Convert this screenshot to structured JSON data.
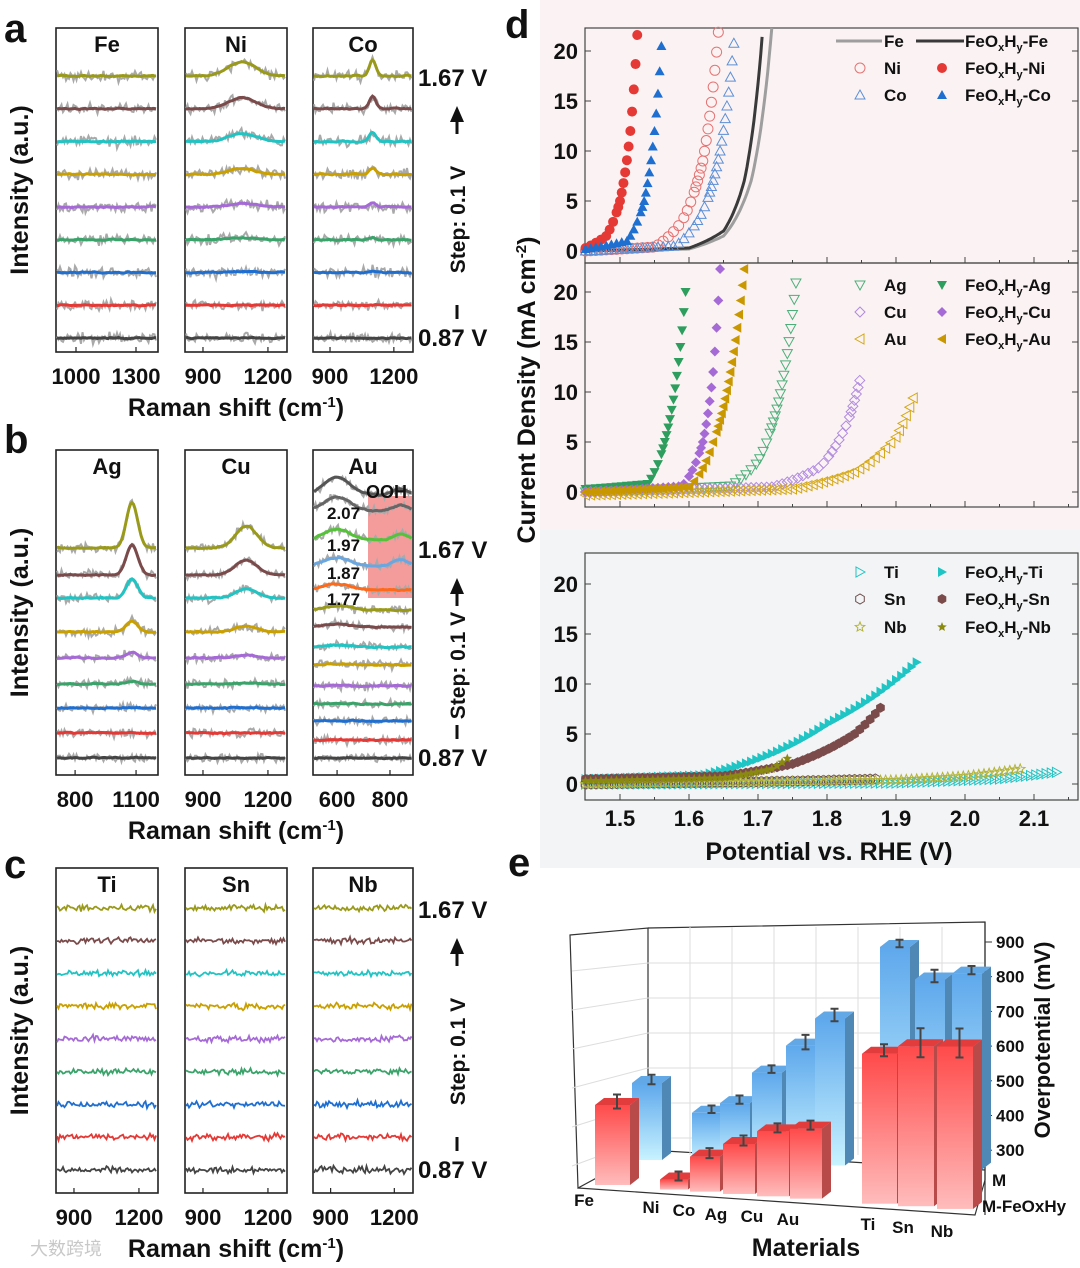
{
  "panel_labels": {
    "a": "a",
    "b": "b",
    "c": "c",
    "d": "d",
    "e": "e"
  },
  "watermark": "大数跨境",
  "chart_data": [
    {
      "id": "a",
      "type": "line",
      "xlabel": {
        "main": "Raman shift (cm",
        "sup": "-1",
        "end": ")"
      },
      "ylabel": "Intensity (a.u.)",
      "voltage_top": "1.67 V",
      "voltage_bottom": "0.87 V",
      "step": "Step: 0.1 V",
      "columns": [
        {
          "label": "Fe",
          "range": [
            900,
            1410
          ],
          "ticks": [
            "1000",
            "1300"
          ],
          "peak": null
        },
        {
          "label": "Ni",
          "range": [
            817,
            1288
          ],
          "ticks": [
            "900",
            "1200"
          ],
          "peak": {
            "center": 1080,
            "width": 90,
            "amp": 14
          }
        },
        {
          "label": "Co",
          "range": [
            820,
            1290
          ],
          "ticks": [
            "900",
            "1200"
          ],
          "peak": {
            "center": 1100,
            "width": 22,
            "amp": 16
          }
        }
      ]
    },
    {
      "id": "b",
      "type": "line",
      "xlabel": {
        "main": "Raman shift (cm",
        "sup": "-1",
        "end": ")"
      },
      "ylabel": "Intensity (a.u.)",
      "voltage_top": "1.67 V",
      "voltage_bottom": "0.87 V",
      "step": "Step: 0.1 V",
      "columns": [
        {
          "label": "Ag",
          "range": [
            706,
            1208
          ],
          "ticks": [
            "800",
            "1100"
          ],
          "peak": {
            "center": 1080,
            "width": 40,
            "amp": 45
          }
        },
        {
          "label": "Cu",
          "range": [
            817,
            1288
          ],
          "ticks": [
            "900",
            "1200"
          ],
          "peak": {
            "center": 1100,
            "width": 70,
            "amp": 22
          }
        },
        {
          "label": "Au",
          "range": [
            509,
            887
          ],
          "ticks": [
            "600",
            "800"
          ],
          "peak": {
            "center": 600,
            "width": 70,
            "amp": 18
          }
        }
      ],
      "au_annotations": {
        "ooh": "OOH",
        "potentials": [
          "2.07",
          "1.97",
          "1.87",
          "1.77"
        ]
      }
    },
    {
      "id": "c",
      "type": "line",
      "xlabel": {
        "main": "Raman shift (cm",
        "sup": "-1",
        "end": ")"
      },
      "ylabel": "Intensity (a.u.)",
      "voltage_top": "1.67 V",
      "voltage_bottom": "0.87 V",
      "step": "Step: 0.1 V",
      "columns": [
        {
          "label": "Ti",
          "range": [
            817,
            1288
          ],
          "ticks": [
            "900",
            "1200"
          ],
          "peak": null
        },
        {
          "label": "Sn",
          "range": [
            817,
            1288
          ],
          "ticks": [
            "900",
            "1200"
          ],
          "peak": null
        },
        {
          "label": "Nb",
          "range": [
            817,
            1288
          ],
          "ticks": [
            "900",
            "1200"
          ],
          "peak": null
        }
      ]
    },
    {
      "id": "d",
      "type": "scatter",
      "xlabel": "Potential vs. RHE (V)",
      "ylabel": {
        "main": "Current Density (mA cm",
        "sup": "-2",
        "end": ")"
      },
      "xlim": [
        1.45,
        2.16
      ],
      "ylim": [
        -1.2,
        22.3
      ],
      "xticks": [
        "1.5",
        "1.6",
        "1.7",
        "1.8",
        "1.9",
        "2.0",
        "2.1"
      ],
      "yticks": [
        "0",
        "5",
        "10",
        "15",
        "20"
      ],
      "legend": "top-right",
      "subplots": [
        {
          "series": [
            {
              "name": "Fe",
              "marker": "line",
              "color": "#9e9e9e",
              "points": [
                [
                  1.45,
                  0
                ],
                [
                  1.6,
                  0.2
                ],
                [
                  1.65,
                  1.5
                ],
                [
                  1.69,
                  7
                ],
                [
                  1.72,
                  22.3
                ]
              ]
            },
            {
              "name": "FeOxHy-Fe",
              "marker": "line",
              "color": "#3a3a3a",
              "points": [
                [
                  1.45,
                  0
                ],
                [
                  1.6,
                  0.3
                ],
                [
                  1.65,
                  2
                ],
                [
                  1.68,
                  7
                ],
                [
                  1.707,
                  22.3
                ]
              ]
            },
            {
              "name": "Ni",
              "marker": "circle-open",
              "color": "#e57373",
              "points": [
                [
                  1.45,
                  0
                ],
                [
                  1.55,
                  0.4
                ],
                [
                  1.59,
                  3
                ],
                [
                  1.62,
                  9
                ],
                [
                  1.643,
                  22.3
                ]
              ]
            },
            {
              "name": "FeOxHy-Ni",
              "marker": "circle",
              "color": "#e53935",
              "points": [
                [
                  1.45,
                  0.3
                ],
                [
                  1.48,
                  1.5
                ],
                [
                  1.5,
                  5
                ],
                [
                  1.515,
                  12
                ],
                [
                  1.525,
                  21.6
                ]
              ]
            },
            {
              "name": "Co",
              "marker": "triangle-open",
              "color": "#5c8fd6",
              "points": [
                [
                  1.45,
                  0
                ],
                [
                  1.58,
                  0.5
                ],
                [
                  1.62,
                  4
                ],
                [
                  1.645,
                  10
                ],
                [
                  1.667,
                  22.3
                ]
              ]
            },
            {
              "name": "FeOxHy-Co",
              "marker": "triangle",
              "color": "#1f6fd1",
              "points": [
                [
                  1.45,
                  0.2
                ],
                [
                  1.51,
                  1
                ],
                [
                  1.535,
                  5
                ],
                [
                  1.55,
                  12
                ],
                [
                  1.56,
                  20.5
                ]
              ]
            }
          ]
        },
        {
          "series": [
            {
              "name": "Ag",
              "marker": "triangle-down-open",
              "color": "#4caf7a",
              "points": [
                [
                  1.45,
                  0
                ],
                [
                  1.66,
                  0.6
                ],
                [
                  1.7,
                  3
                ],
                [
                  1.73,
                  9
                ],
                [
                  1.757,
                  22.3
                ]
              ]
            },
            {
              "name": "FeOxHy-Ag",
              "marker": "triangle-down",
              "color": "#2e9e5e",
              "points": [
                [
                  1.45,
                  0.3
                ],
                [
                  1.54,
                  0.8
                ],
                [
                  1.565,
                  5
                ],
                [
                  1.585,
                  13
                ],
                [
                  1.595,
                  20
                ]
              ]
            },
            {
              "name": "Cu",
              "marker": "diamond-open",
              "color": "#b08ae0",
              "points": [
                [
                  1.45,
                  0
                ],
                [
                  1.72,
                  0.5
                ],
                [
                  1.79,
                  2.5
                ],
                [
                  1.83,
                  7
                ],
                [
                  1.848,
                  11.3
                ]
              ]
            },
            {
              "name": "FeOxHy-Cu",
              "marker": "diamond",
              "color": "#a56ad6",
              "points": [
                [
                  1.45,
                  0
                ],
                [
                  1.59,
                  0.6
                ],
                [
                  1.62,
                  5
                ],
                [
                  1.635,
                  12
                ],
                [
                  1.645,
                  22.3
                ]
              ]
            },
            {
              "name": "Au",
              "marker": "triangle-left-open",
              "color": "#d4a814",
              "points": [
                [
                  1.45,
                  -0.3
                ],
                [
                  1.75,
                  0.3
                ],
                [
                  1.84,
                  2
                ],
                [
                  1.9,
                  5.5
                ],
                [
                  1.928,
                  10
                ]
              ]
            },
            {
              "name": "FeOxHy-Au",
              "marker": "triangle-left",
              "color": "#c99700",
              "points": [
                [
                  1.45,
                  0
                ],
                [
                  1.6,
                  0.5
                ],
                [
                  1.635,
                  5
                ],
                [
                  1.66,
                  12
                ],
                [
                  1.68,
                  22.3
                ]
              ]
            }
          ]
        },
        {
          "series": [
            {
              "name": "Ti",
              "marker": "triangle-right-open",
              "color": "#22c3c3",
              "points": [
                [
                  1.45,
                  0
                ],
                [
                  1.9,
                  0.1
                ],
                [
                  2.05,
                  0.5
                ],
                [
                  2.136,
                  1.2
                ]
              ]
            },
            {
              "name": "FeOxHy-Ti",
              "marker": "triangle-right",
              "color": "#1fc4c4",
              "points": [
                [
                  1.45,
                  0.5
                ],
                [
                  1.62,
                  0.9
                ],
                [
                  1.7,
                  2.5
                ],
                [
                  1.8,
                  6
                ],
                [
                  1.935,
                  12.5
                ]
              ]
            },
            {
              "name": "Sn",
              "marker": "hexagon-open",
              "color": "#6d4c4c",
              "points": [
                [
                  1.45,
                  0
                ],
                [
                  1.75,
                  0.3
                ],
                [
                  1.87,
                  0.5
                ]
              ]
            },
            {
              "name": "FeOxHy-Sn",
              "marker": "hexagon",
              "color": "#7b4b4b",
              "points": [
                [
                  1.45,
                  0.5
                ],
                [
                  1.65,
                  0.8
                ],
                [
                  1.75,
                  2
                ],
                [
                  1.84,
                  5
                ],
                [
                  1.882,
                  8
                ]
              ]
            },
            {
              "name": "Nb",
              "marker": "star-open",
              "color": "#b4b43a",
              "points": [
                [
                  1.45,
                  0
                ],
                [
                  1.9,
                  0.4
                ],
                [
                  2.0,
                  0.8
                ],
                [
                  2.08,
                  1.5
                ]
              ]
            },
            {
              "name": "FeOxHy-Nb",
              "marker": "star",
              "color": "#8a8a10",
              "points": [
                [
                  1.45,
                  0.3
                ],
                [
                  1.65,
                  0.6
                ],
                [
                  1.72,
                  1.5
                ],
                [
                  1.747,
                  2.8
                ]
              ]
            }
          ]
        }
      ]
    },
    {
      "id": "e",
      "type": "bar",
      "title": "",
      "xlabel": "Materials",
      "ylabel": "Overpotential (mV)",
      "categories": [
        "Fe",
        "Ni",
        "Co",
        "Ag",
        "Cu",
        "Au",
        "Ti",
        "Sn",
        "Nb"
      ],
      "rows": [
        "M",
        "M-FeOxHy"
      ],
      "yticks": [
        "900",
        "800",
        "700",
        "600",
        "500",
        "400",
        "300"
      ],
      "ylim": [
        250,
        900
      ],
      "series": [
        {
          "name": "M",
          "color": "#7ec3f0",
          "values": [
            470,
            390,
            420,
            510,
            590,
            670,
            880,
            790,
            810
          ],
          "errors": [
            8,
            5,
            6,
            5,
            15,
            12,
            5,
            12,
            6
          ]
        },
        {
          "name": "M-FeOxHy",
          "color": "#ff5a5a",
          "values": [
            440,
            300,
            350,
            380,
            410,
            420,
            580,
            600,
            605
          ],
          "errors": [
            10,
            5,
            6,
            6,
            5,
            5,
            8,
            25,
            25
          ]
        }
      ]
    }
  ]
}
